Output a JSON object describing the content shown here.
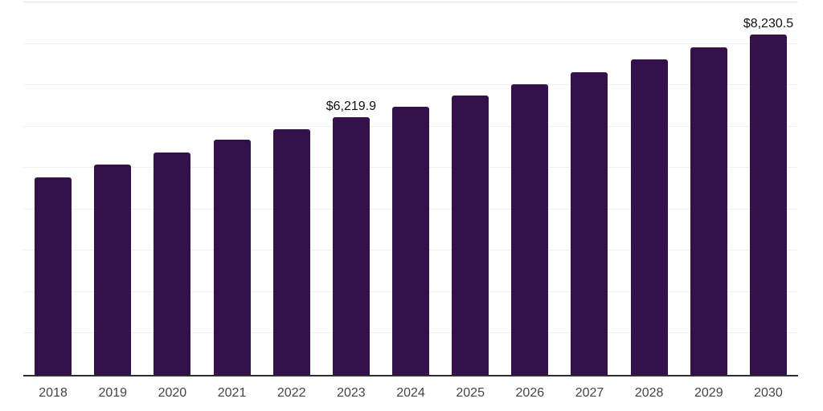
{
  "chart": {
    "bar_color": "#35114C",
    "axis_color": "#2e2e2e",
    "gridline_color": "#f0f0f0",
    "value_label_color": "#111111",
    "tick_label_color": "#454545",
    "background_color": "#ffffff"
  },
  "chart_data": {
    "type": "bar",
    "title": "",
    "xlabel": "",
    "ylabel": "",
    "categories": [
      "2018",
      "2019",
      "2020",
      "2021",
      "2022",
      "2023",
      "2024",
      "2025",
      "2026",
      "2027",
      "2028",
      "2029",
      "2030"
    ],
    "values": [
      4780,
      5090,
      5370,
      5675,
      5935,
      6219.9,
      6470,
      6745,
      7020,
      7310,
      7630,
      7920,
      8230.5
    ],
    "data_labels": {
      "2023": "$6,219.9",
      "2030": "$8,230.5"
    },
    "ylim": [
      0,
      9000
    ],
    "gridline_interval": 1000,
    "grid": true,
    "legend": false,
    "y_axis_labels_visible": false
  }
}
